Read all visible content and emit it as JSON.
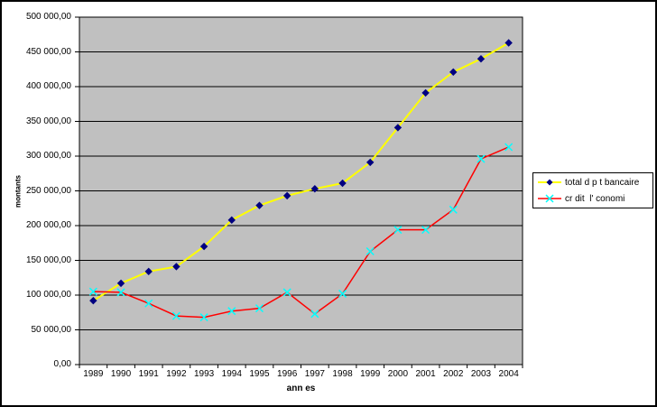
{
  "window": {
    "background": "#ffffff",
    "border_color": "#000000"
  },
  "chart_data": {
    "type": "line",
    "x": [
      "1989",
      "1990",
      "1991",
      "1992",
      "1993",
      "1994",
      "1995",
      "1996",
      "1997",
      "1998",
      "1999",
      "2000",
      "2001",
      "2002",
      "2003",
      "2004"
    ],
    "series": [
      {
        "name": "total d p t bancaire",
        "color": "#FFFF00",
        "line_width": 2,
        "marker": "diamond",
        "marker_color": "#000080",
        "values": [
          92000,
          117000,
          134000,
          141000,
          170000,
          208000,
          229000,
          243000,
          253000,
          261000,
          291000,
          341000,
          391000,
          421000,
          440000,
          463000
        ]
      },
      {
        "name": "cr dit  l' conomi",
        "color": "#FF0000",
        "line_width": 1.5,
        "marker": "x",
        "marker_color": "#00FFFF",
        "values": [
          105000,
          104000,
          88000,
          70000,
          68000,
          77000,
          81000,
          104000,
          73000,
          102000,
          163000,
          194000,
          194000,
          223000,
          296000,
          313000
        ]
      }
    ],
    "xlabel": "ann es",
    "ylabel": "montants",
    "ylim": [
      0,
      500000
    ],
    "y_tick_step": 50000,
    "y_tick_labels": [
      "0,00",
      "50 000,00",
      "100 000,00",
      "150 000,00",
      "200 000,00",
      "250 000,00",
      "300 000,00",
      "350 000,00",
      "400 000,00",
      "450 000,00",
      "500 000,00"
    ],
    "grid": true,
    "plot_background": "#C0C0C0",
    "gridline_color": "#000000",
    "legend_position": "right"
  }
}
